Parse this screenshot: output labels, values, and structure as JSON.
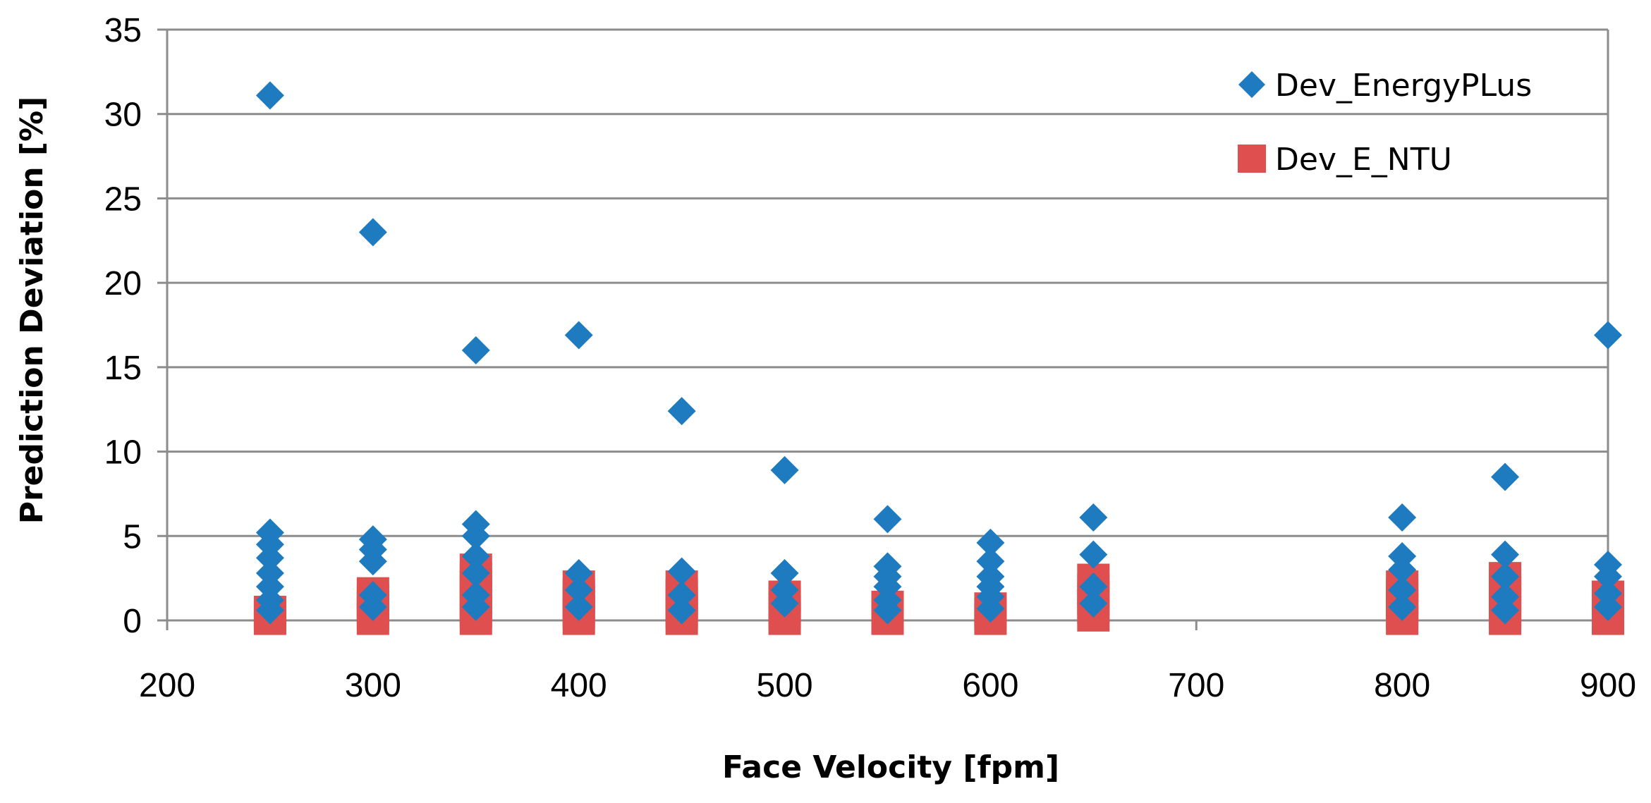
{
  "chart_data": {
    "type": "scatter",
    "title": "",
    "xlabel": "Face Velocity [fpm]",
    "ylabel": "Prediction Deviation [%]",
    "xlim": [
      200,
      900
    ],
    "ylim": [
      0,
      35
    ],
    "xticks": [
      200,
      300,
      400,
      500,
      600,
      700,
      800,
      900
    ],
    "yticks": [
      0,
      5,
      10,
      15,
      20,
      25,
      30,
      35
    ],
    "grid": "horizontal",
    "legend_position": "top-right",
    "series": [
      {
        "name": "Dev_EnergyPLus",
        "marker": "diamond",
        "color": "#1F7BC0",
        "points": [
          [
            250,
            31.1
          ],
          [
            250,
            5.2
          ],
          [
            250,
            4.5
          ],
          [
            250,
            3.7
          ],
          [
            250,
            2.8
          ],
          [
            250,
            2.0
          ],
          [
            250,
            1.2
          ],
          [
            250,
            0.6
          ],
          [
            300,
            23.0
          ],
          [
            300,
            4.8
          ],
          [
            300,
            4.2
          ],
          [
            300,
            3.5
          ],
          [
            300,
            1.5
          ],
          [
            300,
            0.8
          ],
          [
            350,
            16.0
          ],
          [
            350,
            5.7
          ],
          [
            350,
            5.0
          ],
          [
            350,
            3.8
          ],
          [
            350,
            2.8
          ],
          [
            350,
            1.5
          ],
          [
            350,
            0.8
          ],
          [
            400,
            16.9
          ],
          [
            400,
            2.8
          ],
          [
            400,
            1.8
          ],
          [
            400,
            0.8
          ],
          [
            450,
            12.4
          ],
          [
            450,
            2.9
          ],
          [
            450,
            1.5
          ],
          [
            450,
            0.6
          ],
          [
            500,
            8.9
          ],
          [
            500,
            2.8
          ],
          [
            500,
            1.8
          ],
          [
            500,
            1.0
          ],
          [
            550,
            6.0
          ],
          [
            550,
            3.2
          ],
          [
            550,
            2.6
          ],
          [
            550,
            2.0
          ],
          [
            550,
            1.2
          ],
          [
            550,
            0.6
          ],
          [
            600,
            4.6
          ],
          [
            600,
            3.5
          ],
          [
            600,
            2.6
          ],
          [
            600,
            2.0
          ],
          [
            600,
            1.4
          ],
          [
            600,
            0.7
          ],
          [
            650,
            6.1
          ],
          [
            650,
            3.9
          ],
          [
            650,
            2.0
          ],
          [
            650,
            1.0
          ],
          [
            800,
            6.1
          ],
          [
            800,
            3.8
          ],
          [
            800,
            3.0
          ],
          [
            800,
            1.8
          ],
          [
            800,
            0.8
          ],
          [
            850,
            8.5
          ],
          [
            850,
            3.9
          ],
          [
            850,
            2.6
          ],
          [
            850,
            1.4
          ],
          [
            850,
            0.6
          ],
          [
            900,
            16.9
          ],
          [
            900,
            3.3
          ],
          [
            900,
            2.6
          ],
          [
            900,
            1.6
          ],
          [
            900,
            0.8
          ]
        ]
      },
      {
        "name": "Dev_E_NTU",
        "marker": "square",
        "color": "#E04F4F",
        "points": [
          [
            250,
            0.1
          ],
          [
            250,
            0.3
          ],
          [
            250,
            0.5
          ],
          [
            300,
            0.1
          ],
          [
            300,
            0.4
          ],
          [
            300,
            0.8
          ],
          [
            300,
            1.2
          ],
          [
            300,
            1.6
          ],
          [
            350,
            0.1
          ],
          [
            350,
            0.5
          ],
          [
            350,
            1.0
          ],
          [
            350,
            1.5
          ],
          [
            350,
            2.0
          ],
          [
            350,
            2.5
          ],
          [
            350,
            3.0
          ],
          [
            400,
            0.1
          ],
          [
            400,
            0.5
          ],
          [
            400,
            1.0
          ],
          [
            400,
            1.5
          ],
          [
            400,
            2.0
          ],
          [
            450,
            0.1
          ],
          [
            450,
            0.5
          ],
          [
            450,
            1.0
          ],
          [
            450,
            1.5
          ],
          [
            450,
            2.0
          ],
          [
            500,
            0.1
          ],
          [
            500,
            0.5
          ],
          [
            500,
            1.0
          ],
          [
            500,
            1.4
          ],
          [
            550,
            0.1
          ],
          [
            550,
            0.4
          ],
          [
            550,
            0.8
          ],
          [
            600,
            0.1
          ],
          [
            600,
            0.4
          ],
          [
            600,
            0.7
          ],
          [
            650,
            0.3
          ],
          [
            650,
            0.8
          ],
          [
            650,
            1.3
          ],
          [
            650,
            1.8
          ],
          [
            650,
            2.4
          ],
          [
            800,
            0.1
          ],
          [
            800,
            0.5
          ],
          [
            800,
            1.0
          ],
          [
            800,
            1.5
          ],
          [
            800,
            2.0
          ],
          [
            850,
            0.1
          ],
          [
            850,
            0.5
          ],
          [
            850,
            1.0
          ],
          [
            850,
            1.5
          ],
          [
            850,
            2.0
          ],
          [
            850,
            2.5
          ],
          [
            900,
            0.1
          ],
          [
            900,
            0.5
          ],
          [
            900,
            1.0
          ],
          [
            900,
            1.4
          ]
        ]
      }
    ]
  }
}
